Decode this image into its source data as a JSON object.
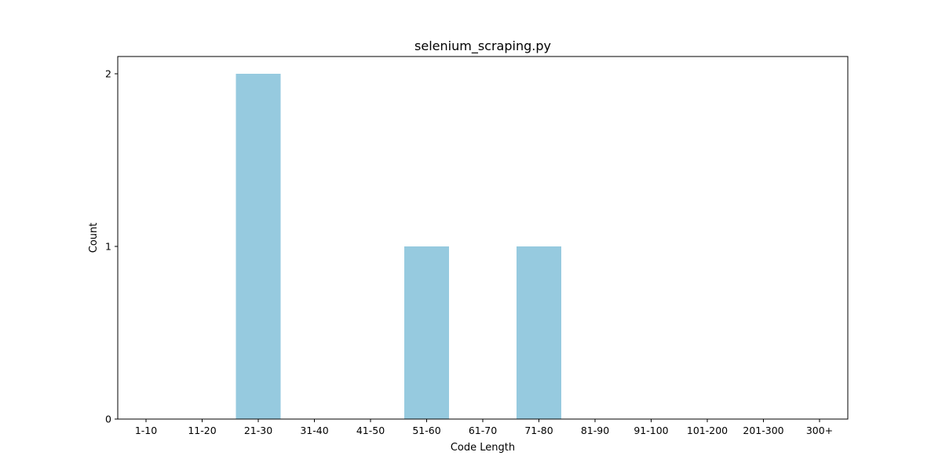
{
  "chart_data": {
    "type": "bar",
    "title": "selenium_scraping.py",
    "xlabel": "Code Length",
    "ylabel": "Count",
    "categories": [
      "1-10",
      "11-20",
      "21-30",
      "31-40",
      "41-50",
      "51-60",
      "61-70",
      "71-80",
      "81-90",
      "91-100",
      "101-200",
      "201-300",
      "300+"
    ],
    "values": [
      0,
      0,
      2,
      0,
      0,
      1,
      0,
      1,
      0,
      0,
      0,
      0,
      0
    ],
    "yticks": [
      "0",
      "1",
      "2"
    ],
    "ylim": [
      0,
      2.1
    ],
    "grid": false,
    "legend": "none",
    "bar_color": "#96cadf"
  }
}
